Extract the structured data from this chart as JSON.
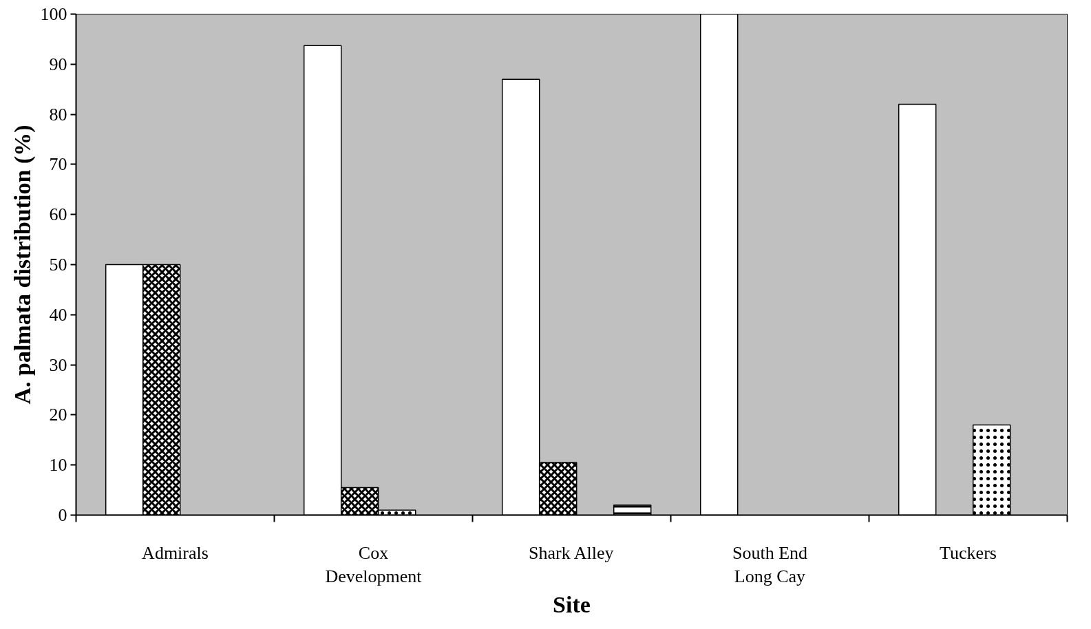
{
  "chart_data": {
    "type": "bar",
    "xlabel": "Site",
    "ylabel": "A. palmata distribution (%)",
    "categories": [
      "Admirals",
      "Cox Development",
      "Shark Alley",
      "South End Long Cay",
      "Tuckers"
    ],
    "series": [
      {
        "color": "#ffffff",
        "values": [
          50,
          93.7,
          87,
          100,
          82
        ]
      },
      {
        "color": "#000000",
        "values": [
          50,
          5.5,
          10.5,
          null,
          null
        ]
      },
      {
        "color": "#000000",
        "values": [
          null,
          1,
          null,
          null,
          18
        ]
      },
      {
        "color": "#000000",
        "values": [
          null,
          null,
          2,
          null,
          null
        ]
      }
    ],
    "ylim": [
      0,
      100
    ],
    "yticks": [
      0,
      10,
      20,
      30,
      40,
      50,
      60,
      70,
      80,
      90,
      100
    ],
    "grid": false
  }
}
